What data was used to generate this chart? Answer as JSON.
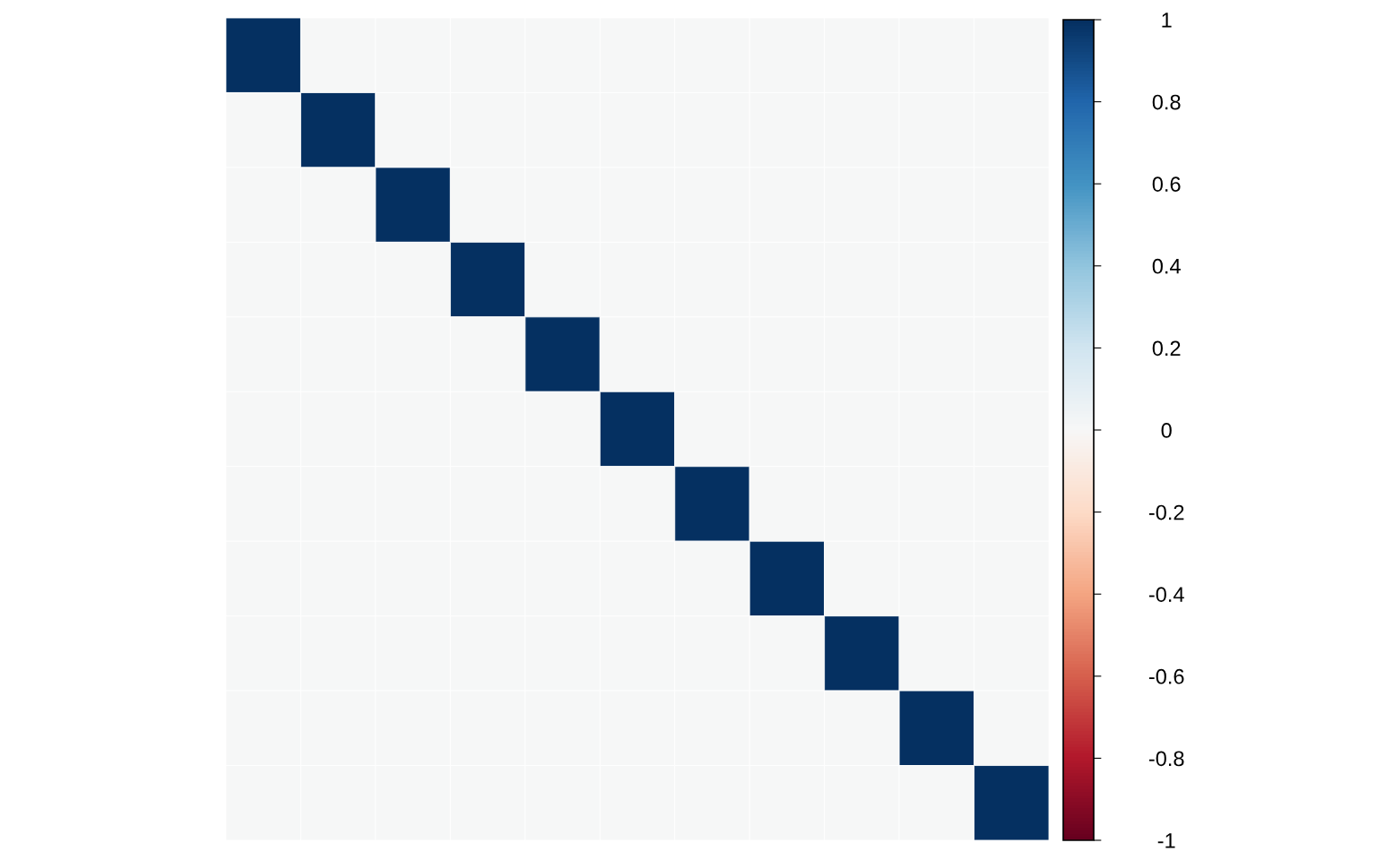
{
  "chart_data": {
    "type": "heatmap",
    "categories": [
      null,
      null,
      null,
      null,
      null,
      null,
      null,
      null,
      null,
      null,
      null
    ],
    "y_categories": [
      null,
      null,
      null,
      null,
      null,
      null,
      null,
      null,
      null,
      null,
      null
    ],
    "cells": [
      [
        1,
        0,
        0,
        0,
        0,
        0,
        0,
        0,
        0,
        0,
        0
      ],
      [
        0,
        1,
        0,
        0,
        0,
        0,
        0,
        0,
        0,
        0,
        0
      ],
      [
        0,
        0,
        1,
        0,
        0,
        0,
        0,
        0,
        0,
        0,
        0
      ],
      [
        0,
        0,
        0,
        1,
        0,
        0,
        0,
        0,
        0,
        0,
        0
      ],
      [
        0,
        0,
        0,
        0,
        1,
        0,
        0,
        0,
        0,
        0,
        0
      ],
      [
        0,
        0,
        0,
        0,
        0,
        1,
        0,
        0,
        0,
        0,
        0
      ],
      [
        0,
        0,
        0,
        0,
        0,
        0,
        1,
        0,
        0,
        0,
        0
      ],
      [
        0,
        0,
        0,
        0,
        0,
        0,
        0,
        1,
        0,
        0,
        0
      ],
      [
        0,
        0,
        0,
        0,
        0,
        0,
        0,
        0,
        1,
        0,
        0
      ],
      [
        0,
        0,
        0,
        0,
        0,
        0,
        0,
        0,
        0,
        1,
        0
      ],
      [
        0,
        0,
        0,
        0,
        0,
        0,
        0,
        0,
        0,
        0,
        1
      ]
    ],
    "clim": [
      -1,
      1
    ],
    "cticks": [
      -1,
      -0.8,
      -0.6,
      -0.4,
      -0.2,
      0,
      0.2,
      0.4,
      0.6,
      0.8,
      1
    ]
  }
}
